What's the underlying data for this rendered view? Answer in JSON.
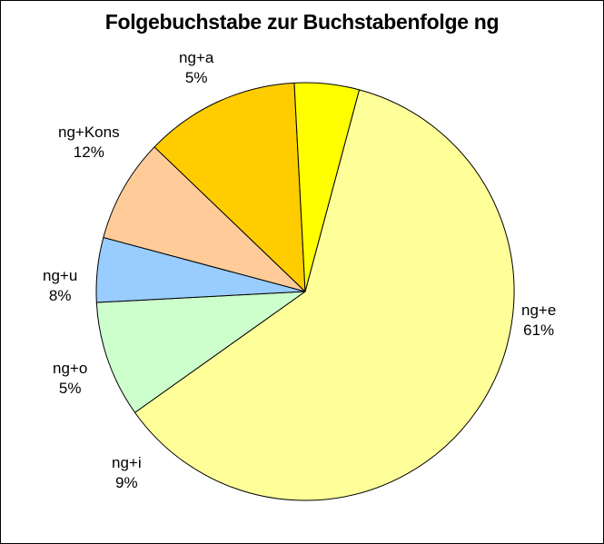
{
  "chart_data": {
    "type": "pie",
    "title": "Folgebuchstabe zur Buchstabenfolge ng",
    "slices": [
      {
        "label": "ng+e",
        "percent_label": "61%",
        "value": 61,
        "color": "#FFFF99"
      },
      {
        "label": "ng+i",
        "percent_label": "9%",
        "value": 9,
        "color": "#CCFFCC"
      },
      {
        "label": "ng+o",
        "percent_label": "5%",
        "value": 5,
        "color": "#99CCFF"
      },
      {
        "label": "ng+u",
        "percent_label": "8%",
        "value": 8,
        "color": "#FFCC99"
      },
      {
        "label": "ng+Kons",
        "percent_label": "12%",
        "value": 12,
        "color": "#FFCC00"
      },
      {
        "label": "ng+a",
        "percent_label": "5%",
        "value": 5,
        "color": "#FFFF00"
      }
    ]
  }
}
